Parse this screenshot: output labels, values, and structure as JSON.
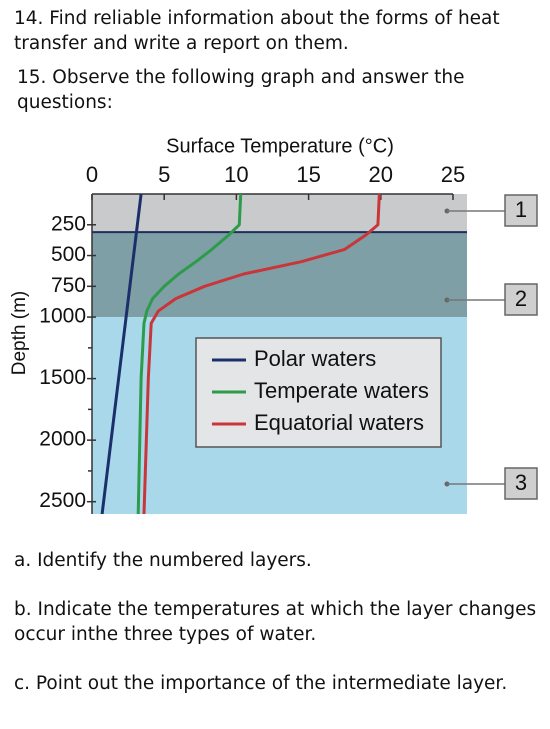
{
  "questions_top": [
    "14. Find reliable information about the forms of heat transfer and write a report on them.",
    "15. Observe the following graph and answer the questions:"
  ],
  "chart_data": {
    "type": "line",
    "x_label": "Surface Temperature (°C)",
    "y_label": "Depth (m)",
    "xlim": [
      0,
      25
    ],
    "xticks": [
      0,
      5,
      10,
      15,
      20,
      25
    ],
    "ylim": [
      0,
      2600
    ],
    "yticks": [
      250,
      500,
      750,
      1000,
      1500,
      2000,
      2500
    ],
    "yminorticks": [
      1250,
      1750,
      2250
    ],
    "y_inverted": true,
    "layers": [
      {
        "label": "1",
        "from": 0,
        "to": 310,
        "color": "#c9cacc"
      },
      {
        "label": "2",
        "from": 310,
        "to": 1000,
        "color": "#7e9fa5"
      },
      {
        "label": "3",
        "from": 1000,
        "to": 2600,
        "color": "#a8d8ea"
      }
    ],
    "legend": "center",
    "series": [
      {
        "name": "Polar waters",
        "color": "#1b2f6b",
        "depths": [
          0,
          2600
        ],
        "values": [
          3.4,
          0.7
        ]
      },
      {
        "name": "Temperate waters",
        "color": "#2e9b4a",
        "depths": [
          0,
          250,
          330,
          450,
          550,
          650,
          750,
          850,
          950,
          1050,
          1500,
          2600
        ],
        "values": [
          10.3,
          10.2,
          9.5,
          8.3,
          7.2,
          6.0,
          5.0,
          4.2,
          3.8,
          3.6,
          3.4,
          3.2
        ]
      },
      {
        "name": "Equatorial waters",
        "color": "#c9363a",
        "depths": [
          0,
          250,
          330,
          450,
          550,
          650,
          750,
          850,
          950,
          1050,
          1500,
          2600
        ],
        "values": [
          19.9,
          19.8,
          19.0,
          17.5,
          14.5,
          10.5,
          7.8,
          5.8,
          4.6,
          4.1,
          3.9,
          3.6
        ]
      }
    ]
  },
  "questions_bottom": [
    "a. Identify the numbered layers.",
    "b. Indicate the temperatures at which the layer changes occur inthe three types of water.",
    "c. Point out the importance of the intermediate layer."
  ]
}
